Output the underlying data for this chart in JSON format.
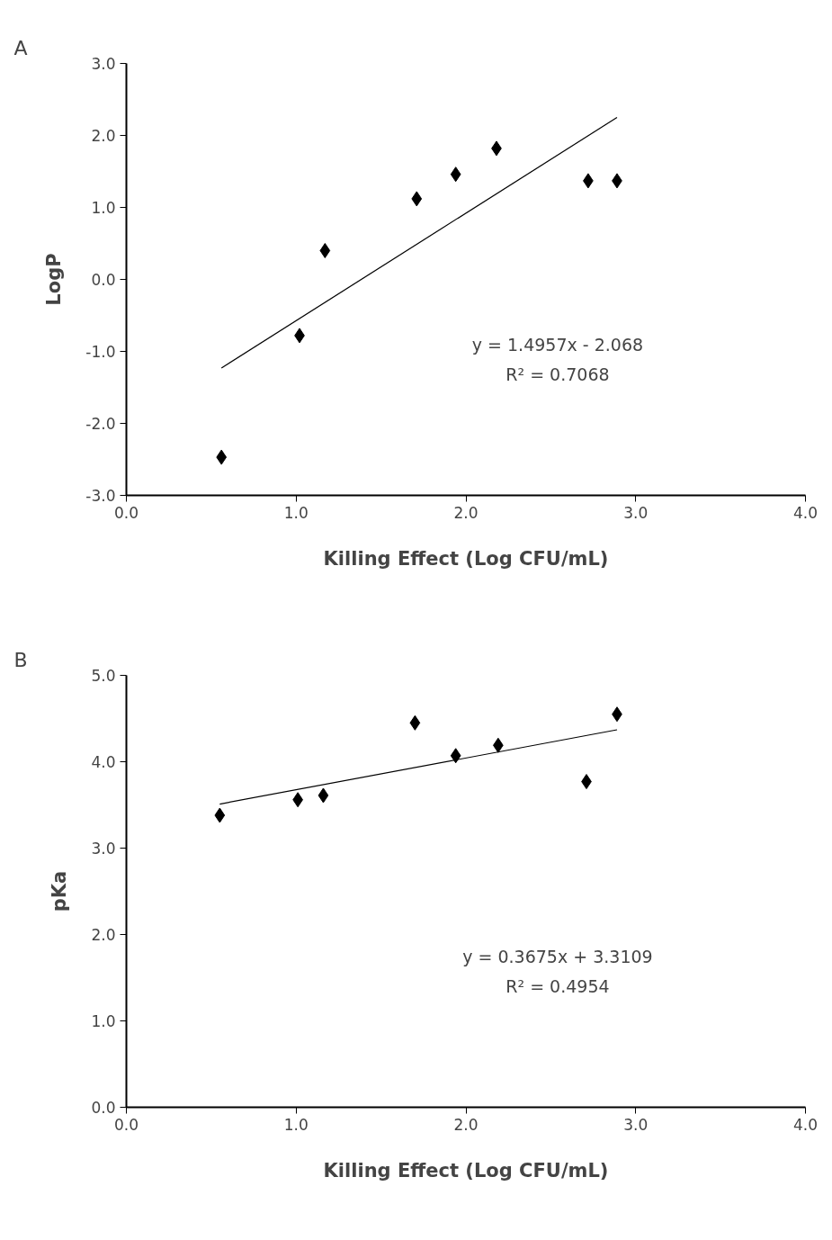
{
  "chart_data": [
    {
      "type": "scatter",
      "title": "A",
      "xlabel": "Killing Effect (Log CFU/mL)",
      "ylabel": "LogP",
      "xlim": [
        0,
        4
      ],
      "ylim": [
        -3,
        3
      ],
      "grid": false,
      "xticks": [
        {
          "value": 0,
          "label": "0.0"
        },
        {
          "value": 1,
          "label": "1.0"
        },
        {
          "value": 2,
          "label": "2.0"
        },
        {
          "value": 3,
          "label": "3.0"
        },
        {
          "value": 4,
          "label": "4.0"
        }
      ],
      "yticks": [
        {
          "value": -3,
          "label": "-3.0"
        },
        {
          "value": -2,
          "label": "-2.0"
        },
        {
          "value": -1,
          "label": "-1.0"
        },
        {
          "value": 0,
          "label": "0.0"
        },
        {
          "value": 1,
          "label": "1.0"
        },
        {
          "value": 2,
          "label": "2.0"
        },
        {
          "value": 3,
          "label": "3.0"
        }
      ],
      "series": [
        {
          "marker": "diamond",
          "color": "#000000",
          "x": [
            0.56,
            1.02,
            1.17,
            1.71,
            1.94,
            2.18,
            2.72,
            2.89
          ],
          "values": [
            -2.47,
            -0.78,
            0.4,
            1.12,
            1.46,
            1.82,
            1.37,
            1.37
          ]
        },
        {
          "type": "line",
          "marker": "none",
          "color": "#000000",
          "x": [
            0.56,
            2.89
          ],
          "values": [
            -1.23,
            2.25
          ]
        }
      ],
      "annotations": [
        "y = 1.4957x - 2.068",
        "R² = 0.7068"
      ]
    },
    {
      "type": "scatter",
      "title": "B",
      "xlabel": "Killing Effect (Log CFU/mL)",
      "ylabel": "pKa",
      "xlim": [
        0,
        4
      ],
      "ylim": [
        0,
        5
      ],
      "xticks": [
        {
          "value": 0,
          "label": "0.0"
        },
        {
          "value": 1,
          "label": "1.0"
        },
        {
          "value": 2,
          "label": "2.0"
        },
        {
          "value": 3,
          "label": "3.0"
        },
        {
          "value": 4,
          "label": "4.0"
        }
      ],
      "yticks": [
        {
          "value": 0,
          "label": "0.0"
        },
        {
          "value": 1,
          "label": "1.0"
        },
        {
          "value": 2,
          "label": "2.0"
        },
        {
          "value": 3,
          "label": "3.0"
        },
        {
          "value": 4,
          "label": "4.0"
        },
        {
          "value": 5,
          "label": "5.0"
        }
      ],
      "grid": false,
      "series": [
        {
          "marker": "diamond",
          "color": "#000000",
          "x": [
            0.55,
            1.01,
            1.16,
            1.7,
            1.94,
            2.19,
            2.71,
            2.89
          ],
          "values": [
            3.38,
            3.56,
            3.61,
            4.45,
            4.07,
            4.19,
            3.77,
            4.55
          ]
        },
        {
          "type": "line",
          "marker": "none",
          "color": "#000000",
          "x": [
            0.55,
            2.89
          ],
          "values": [
            3.51,
            4.37
          ]
        }
      ],
      "annotations": [
        "y = 0.3675x + 3.3109",
        "R² = 0.4954"
      ]
    }
  ]
}
